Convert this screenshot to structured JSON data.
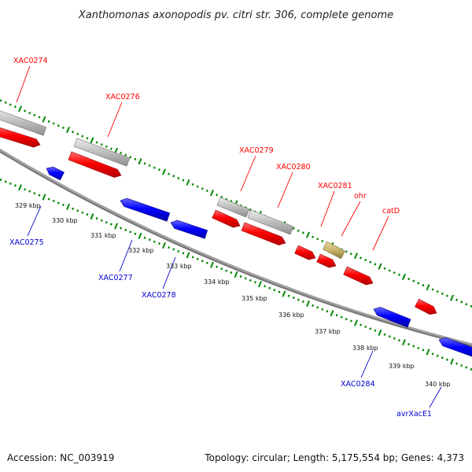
{
  "title": "Xanthomonas axonopodis pv. citri str. 306, complete genome",
  "accession": "Accession: NC_003919",
  "summary": "Topology: circular; Length: 5,175,554 bp; Genes: 4,373",
  "colors": {
    "forward": "#ff0000",
    "reverse": "#0000ff",
    "pseudo": "#bbbbbb",
    "rna": "#c8b46a",
    "top_label": "#ff0000",
    "bottom_label": "#0000cc",
    "tick": "#008800",
    "backbone": "#888888"
  },
  "scale_labels": [
    "329 kbp",
    "330 kbp",
    "331 kbp",
    "332 kbp",
    "333 kbp",
    "334 kbp",
    "335 kbp",
    "336 kbp",
    "337 kbp",
    "338 kbp",
    "339 kbp",
    "340 kbp"
  ],
  "top_labels": [
    "XAC0274",
    "XAC0276",
    "XAC0279",
    "XAC0280",
    "XAC0281",
    "ohr",
    "catD"
  ],
  "bottom_labels": [
    "XAC0275",
    "XAC0277",
    "XAC0278",
    "XAC0284",
    "avrXacE1"
  ]
}
